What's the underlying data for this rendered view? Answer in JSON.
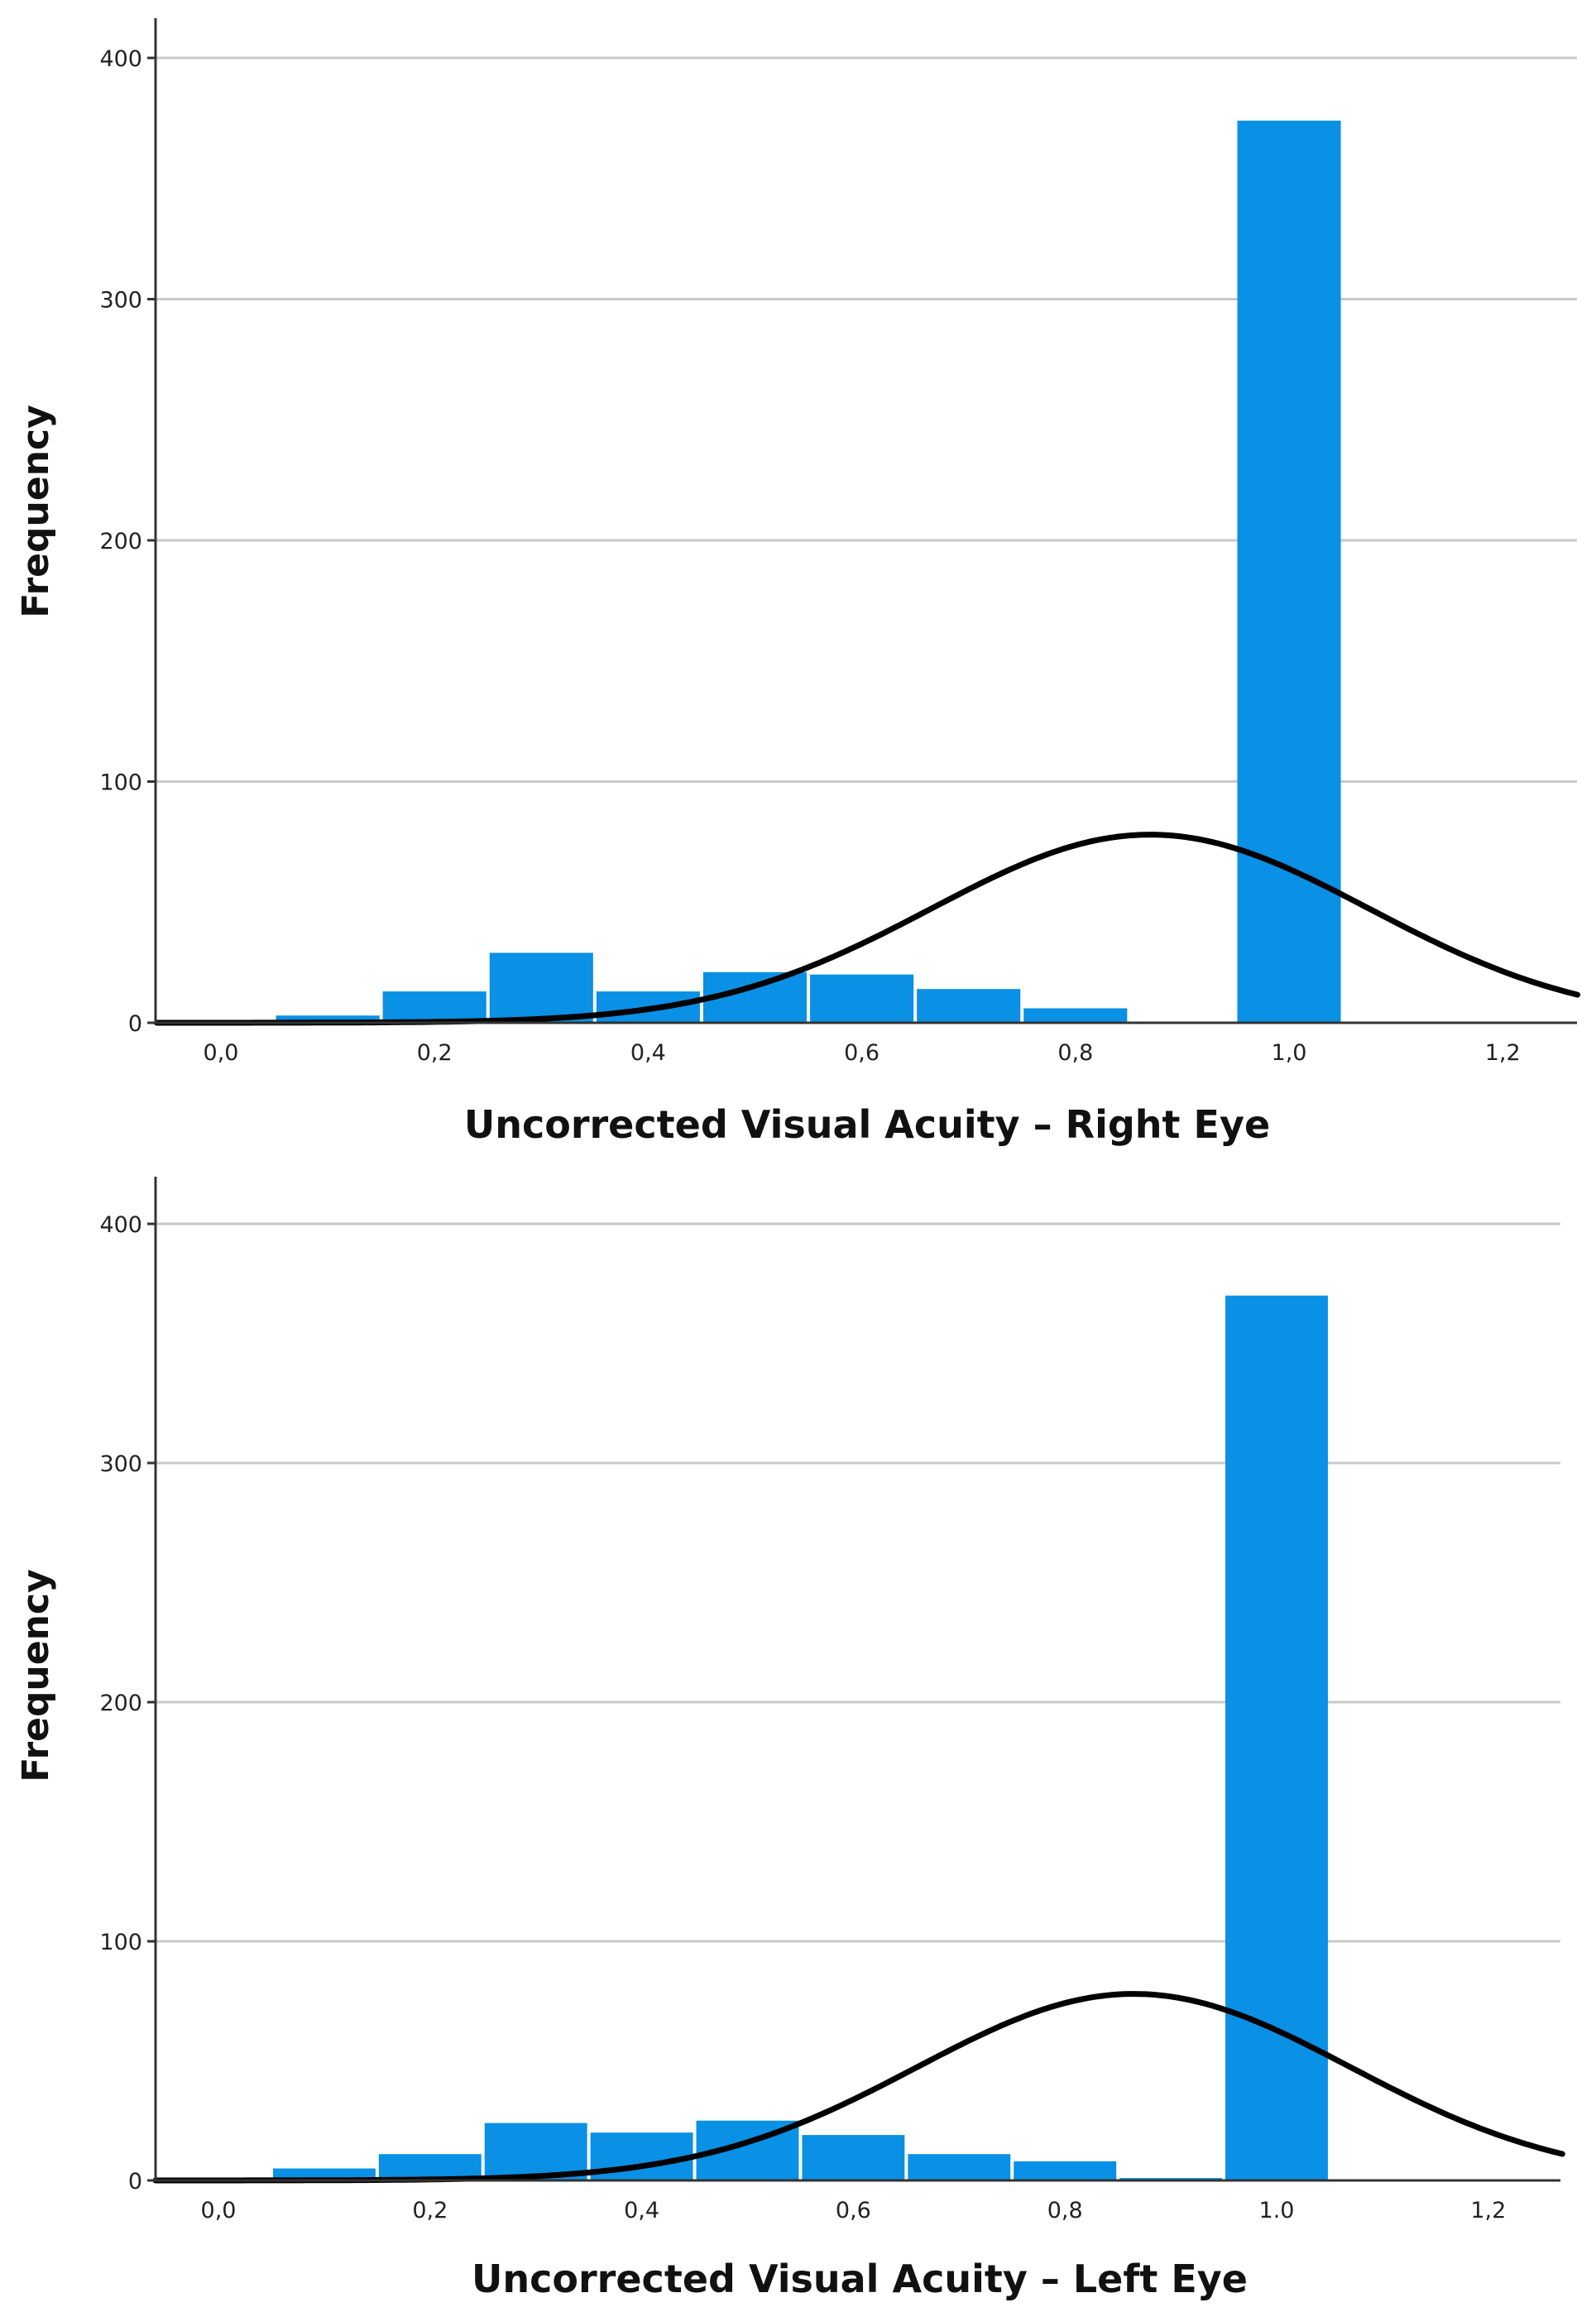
{
  "chart_data": [
    {
      "type": "bar",
      "histogram": true,
      "xlabel": "Uncorrected Visual Acuity – Right Eye",
      "ylabel": "Frequency",
      "xlim": [
        -0.06,
        1.27
      ],
      "ylim": [
        0,
        415
      ],
      "x_ticks": [
        0.0,
        0.2,
        0.4,
        0.6,
        0.8,
        1.0,
        1.2
      ],
      "x_tick_labels": [
        "0,0",
        "0,2",
        "0,4",
        "0,6",
        "0,8",
        "1,0",
        "1,2"
      ],
      "y_ticks": [
        0,
        100,
        200,
        300,
        400
      ],
      "y_tick_labels": [
        "0",
        "100",
        "200",
        "300",
        "400"
      ],
      "grid": true,
      "bar_color": "#0a90e4",
      "bins": [
        {
          "x": 0.0,
          "value": 0
        },
        {
          "x": 0.1,
          "value": 3
        },
        {
          "x": 0.2,
          "value": 13
        },
        {
          "x": 0.3,
          "value": 29
        },
        {
          "x": 0.4,
          "value": 13
        },
        {
          "x": 0.5,
          "value": 21
        },
        {
          "x": 0.6,
          "value": 20
        },
        {
          "x": 0.7,
          "value": 14
        },
        {
          "x": 0.8,
          "value": 6
        },
        {
          "x": 0.9,
          "value": 0
        },
        {
          "x": 1.0,
          "value": 374
        }
      ],
      "normal_curve": {
        "mean": 0.87,
        "sd": 0.205,
        "peak": 78,
        "color": "#000000"
      }
    },
    {
      "type": "bar",
      "histogram": true,
      "xlabel": "Uncorrected Visual Acuity – Left Eye",
      "ylabel": "Frequency",
      "xlim": [
        -0.06,
        1.27
      ],
      "ylim": [
        0,
        420
      ],
      "x_ticks": [
        0.0,
        0.2,
        0.4,
        0.6,
        0.8,
        1.0,
        1.2
      ],
      "x_tick_labels": [
        "0,0",
        "0,2",
        "0,4",
        "0,6",
        "0,8",
        "1.0",
        "1,2"
      ],
      "y_ticks": [
        0,
        100,
        200,
        300,
        400
      ],
      "y_tick_labels": [
        "0",
        "100",
        "200",
        "300",
        "400"
      ],
      "grid": true,
      "bar_color": "#0a90e4",
      "bins": [
        {
          "x": 0.0,
          "value": 0
        },
        {
          "x": 0.1,
          "value": 5
        },
        {
          "x": 0.2,
          "value": 11
        },
        {
          "x": 0.3,
          "value": 24
        },
        {
          "x": 0.4,
          "value": 20
        },
        {
          "x": 0.5,
          "value": 25
        },
        {
          "x": 0.6,
          "value": 19
        },
        {
          "x": 0.7,
          "value": 11
        },
        {
          "x": 0.8,
          "value": 8
        },
        {
          "x": 0.9,
          "value": 1
        },
        {
          "x": 1.0,
          "value": 370
        }
      ],
      "normal_curve": {
        "mean": 0.865,
        "sd": 0.205,
        "peak": 78,
        "color": "#000000"
      }
    }
  ]
}
